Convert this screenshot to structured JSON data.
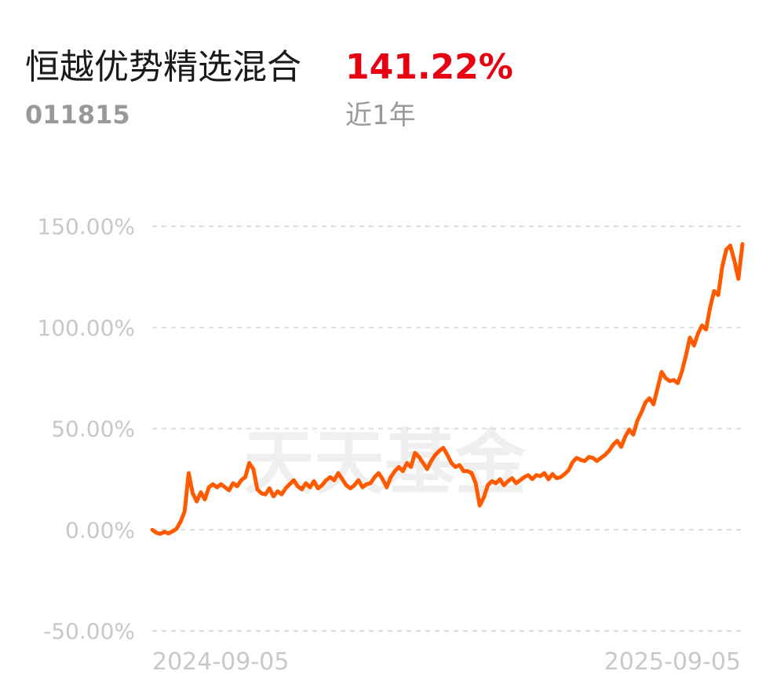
{
  "header": {
    "fund_name": "恒越优势精选混合",
    "return_value": "141.22%",
    "fund_code": "011815",
    "period_label": "近1年"
  },
  "watermark": "天天基金",
  "colors": {
    "line": "#ff5a00",
    "return_red": "#e60012",
    "grid": "#dddddd",
    "axis_text": "#c8c8c8",
    "watermark": "#efefef"
  },
  "chart_data": {
    "type": "line",
    "title": "",
    "xlabel": "",
    "ylabel": "",
    "ylim": [
      -50,
      150
    ],
    "y_ticks": [
      150,
      100,
      50,
      0,
      -50
    ],
    "y_tick_labels": [
      "150.00%",
      "100.00%",
      "50.00%",
      "0.00%",
      "-50.00%"
    ],
    "x_tick_labels": [
      "2024-09-05",
      "2025-09-05"
    ],
    "grid": true,
    "series": [
      {
        "values": [
          0.0,
          -1.5,
          -2.0,
          -1.0,
          -1.8,
          -0.8,
          0.5,
          4.0,
          9.0,
          28.0,
          18.0,
          14.0,
          18.5,
          15.0,
          21.0,
          22.5,
          21.0,
          22.5,
          21.0,
          19.5,
          23.0,
          21.5,
          24.5,
          26.0,
          33.0,
          30.0,
          20.0,
          18.0,
          17.5,
          20.5,
          16.5,
          19.0,
          17.5,
          20.5,
          22.5,
          24.5,
          21.5,
          20.0,
          23.0,
          21.0,
          24.0,
          20.5,
          22.0,
          24.5,
          26.0,
          24.5,
          28.0,
          25.0,
          22.0,
          20.5,
          22.0,
          24.5,
          21.0,
          22.5,
          23.0,
          26.0,
          28.0,
          25.0,
          21.0,
          26.0,
          29.0,
          31.0,
          29.0,
          33.0,
          31.0,
          38.0,
          36.0,
          33.0,
          30.0,
          34.0,
          37.0,
          39.0,
          40.5,
          37.0,
          33.0,
          31.0,
          32.0,
          29.0,
          29.0,
          28.0,
          23.0,
          12.0,
          16.0,
          22.0,
          24.0,
          23.0,
          25.0,
          22.0,
          24.0,
          25.5,
          23.0,
          24.5,
          26.0,
          27.0,
          25.0,
          27.0,
          26.5,
          28.0,
          25.0,
          27.5,
          25.5,
          26.0,
          27.5,
          29.5,
          33.5,
          35.5,
          34.5,
          34.0,
          36.0,
          35.5,
          34.0,
          35.5,
          37.0,
          39.0,
          42.0,
          44.0,
          41.0,
          46.0,
          49.5,
          47.0,
          54.0,
          58.0,
          63.0,
          65.0,
          62.0,
          70.0,
          78.0,
          75.0,
          73.5,
          74.0,
          72.5,
          78.0,
          86.0,
          95.0,
          91.0,
          97.0,
          101.0,
          99.0,
          110.0,
          118.0,
          116.0,
          130.0,
          138.5,
          140.5,
          133.0,
          124.0,
          141.22
        ]
      }
    ]
  }
}
